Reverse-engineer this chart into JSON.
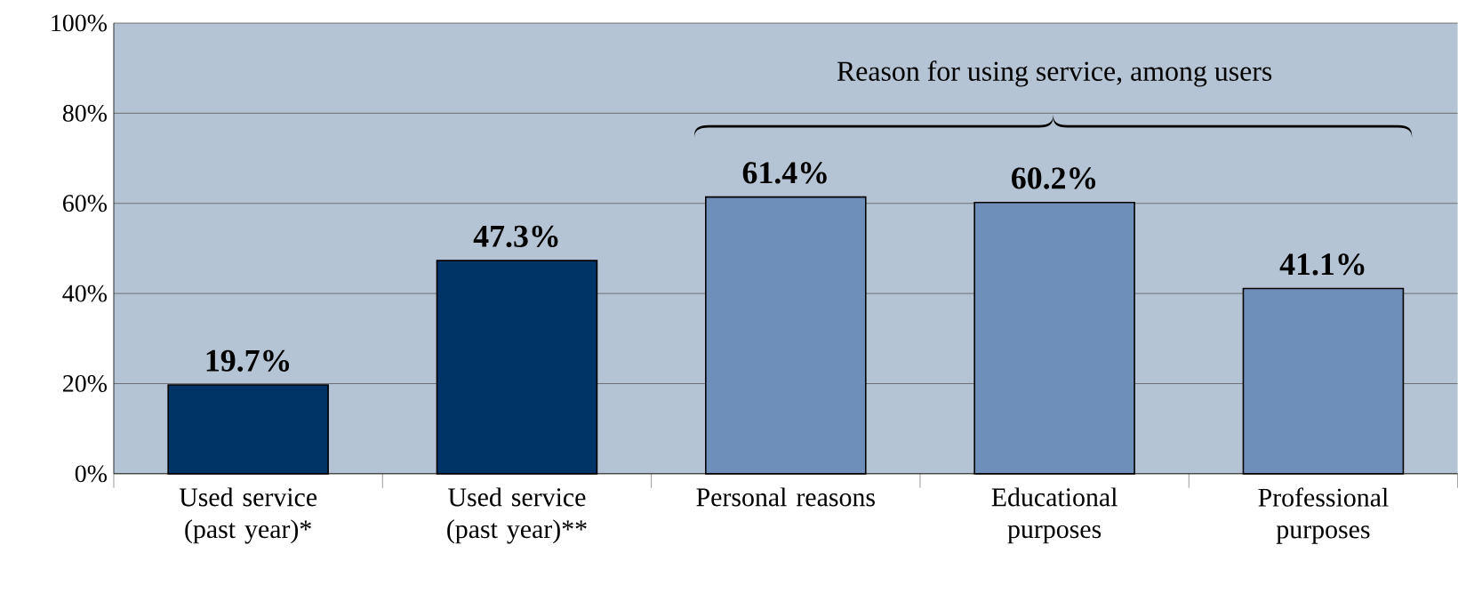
{
  "chart_data": {
    "type": "bar",
    "categories": [
      "Used service (past year)*",
      "Used service (past year)**",
      "Personal reasons",
      "Educational purposes",
      "Professional purposes"
    ],
    "values": [
      19.7,
      47.3,
      61.4,
      60.2,
      41.1
    ],
    "value_labels": [
      "19.7%",
      "47.3%",
      "61.4%",
      "60.2%",
      "41.1%"
    ],
    "colors": [
      "#003366",
      "#003366",
      "#6f8fbb",
      "#6f8fbb",
      "#6f8fbb"
    ],
    "ylim": [
      0,
      100
    ],
    "yticks": [
      {
        "value": 0,
        "label": "0%"
      },
      {
        "value": 20,
        "label": "20%"
      },
      {
        "value": 40,
        "label": "40%"
      },
      {
        "value": 60,
        "label": "60%"
      },
      {
        "value": 80,
        "label": "80%"
      },
      {
        "value": 100,
        "label": "100%"
      }
    ],
    "grid": "y",
    "annotations": [
      "Reason for using service, among users"
    ]
  }
}
